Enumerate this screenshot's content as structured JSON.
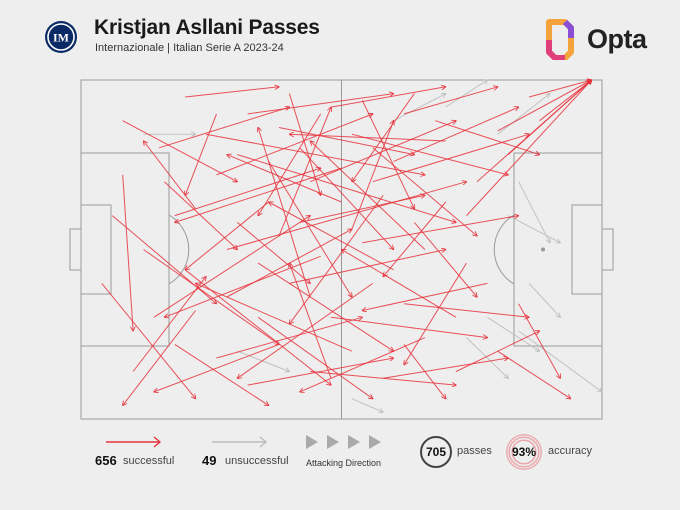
{
  "header": {
    "title": "Kristjan Asllani Passes",
    "subtitle": "Internazionale | Italian Serie A 2023-24",
    "brand": "Opta",
    "brand_colors": [
      "#f4a43a",
      "#e0407a",
      "#8a4fd6"
    ]
  },
  "club_logo": {
    "icon": "inter-crest-icon",
    "color": "#0a2a66"
  },
  "legend": {
    "successful_count": "656",
    "successful_label": "successful",
    "unsuccessful_count": "49",
    "unsuccessful_label": "unsuccessful",
    "direction_label": "Attacking Direction",
    "passes_count": "705",
    "passes_label": "passes",
    "accuracy_value": "93%",
    "accuracy_label": "accuracy",
    "successful_color": "#e8323c",
    "unsuccessful_color": "#bbbbbb"
  },
  "chart_data": {
    "type": "scatter",
    "description_type": "pass-map",
    "x_range": [
      0,
      100
    ],
    "y_range": [
      0,
      100
    ],
    "attacking_direction": "left-to-right",
    "totals": {
      "successful": 656,
      "unsuccessful": 49,
      "passes": 705,
      "accuracy_pct": 93
    },
    "successful_passes": [
      [
        74,
        60,
        98,
        100
      ],
      [
        76,
        70,
        98,
        100
      ],
      [
        82,
        78,
        98,
        100
      ],
      [
        80,
        85,
        98,
        100
      ],
      [
        88,
        88,
        98,
        100
      ],
      [
        86,
        95,
        98,
        100
      ],
      [
        62,
        90,
        80,
        98
      ],
      [
        20,
        95,
        38,
        98
      ],
      [
        32,
        90,
        60,
        96
      ],
      [
        48,
        92,
        70,
        98
      ],
      [
        8,
        88,
        30,
        70
      ],
      [
        15,
        80,
        40,
        92
      ],
      [
        26,
        72,
        56,
        90
      ],
      [
        38,
        86,
        64,
        78
      ],
      [
        44,
        70,
        72,
        88
      ],
      [
        52,
        84,
        82,
        72
      ],
      [
        60,
        76,
        84,
        92
      ],
      [
        68,
        88,
        88,
        78
      ],
      [
        22,
        62,
        12,
        82
      ],
      [
        30,
        58,
        44,
        40
      ],
      [
        36,
        64,
        20,
        44
      ],
      [
        42,
        58,
        66,
        66
      ],
      [
        50,
        64,
        28,
        78
      ],
      [
        54,
        52,
        84,
        60
      ],
      [
        58,
        66,
        40,
        28
      ],
      [
        64,
        58,
        76,
        36
      ],
      [
        70,
        64,
        58,
        42
      ],
      [
        46,
        48,
        16,
        30
      ],
      [
        40,
        40,
        70,
        50
      ],
      [
        34,
        46,
        60,
        20
      ],
      [
        28,
        36,
        52,
        56
      ],
      [
        20,
        44,
        48,
        10
      ],
      [
        14,
        30,
        44,
        60
      ],
      [
        12,
        50,
        38,
        22
      ],
      [
        6,
        60,
        26,
        34
      ],
      [
        48,
        30,
        78,
        24
      ],
      [
        56,
        40,
        30,
        12
      ],
      [
        62,
        34,
        86,
        30
      ],
      [
        66,
        24,
        42,
        8
      ],
      [
        72,
        30,
        50,
        50
      ],
      [
        26,
        18,
        54,
        30
      ],
      [
        32,
        10,
        60,
        18
      ],
      [
        38,
        22,
        14,
        8
      ],
      [
        44,
        14,
        72,
        10
      ],
      [
        52,
        20,
        22,
        40
      ],
      [
        58,
        12,
        82,
        18
      ],
      [
        18,
        22,
        36,
        4
      ],
      [
        10,
        14,
        24,
        42
      ],
      [
        4,
        40,
        22,
        6
      ],
      [
        8,
        72,
        10,
        26
      ],
      [
        36,
        76,
        52,
        36
      ],
      [
        42,
        80,
        60,
        50
      ],
      [
        50,
        74,
        18,
        58
      ],
      [
        56,
        80,
        76,
        54
      ],
      [
        60,
        44,
        36,
        64
      ],
      [
        66,
        50,
        44,
        82
      ],
      [
        24,
        84,
        66,
        72
      ],
      [
        30,
        78,
        72,
        58
      ],
      [
        46,
        90,
        34,
        60
      ],
      [
        54,
        94,
        64,
        62
      ],
      [
        40,
        96,
        46,
        66
      ],
      [
        64,
        96,
        52,
        70
      ],
      [
        70,
        82,
        40,
        84
      ],
      [
        74,
        46,
        62,
        16
      ],
      [
        78,
        40,
        54,
        32
      ],
      [
        80,
        20,
        94,
        6
      ],
      [
        84,
        34,
        92,
        12
      ],
      [
        72,
        14,
        88,
        26
      ],
      [
        34,
        30,
        56,
        6
      ],
      [
        18,
        60,
        46,
        74
      ],
      [
        22,
        32,
        8,
        4
      ],
      [
        62,
        22,
        70,
        6
      ],
      [
        28,
        50,
        74,
        70
      ],
      [
        44,
        36,
        34,
        86
      ],
      [
        52,
        56,
        60,
        88
      ],
      [
        38,
        54,
        48,
        92
      ],
      [
        16,
        70,
        30,
        50
      ],
      [
        26,
        90,
        20,
        66
      ],
      [
        56,
        70,
        86,
        84
      ],
      [
        48,
        12,
        40,
        46
      ]
    ],
    "unsuccessful_passes": [
      [
        70,
        92,
        78,
        100
      ],
      [
        80,
        84,
        90,
        96
      ],
      [
        84,
        70,
        90,
        52
      ],
      [
        82,
        60,
        92,
        52
      ],
      [
        86,
        40,
        92,
        30
      ],
      [
        78,
        30,
        88,
        20
      ],
      [
        74,
        24,
        82,
        12
      ],
      [
        30,
        20,
        40,
        14
      ],
      [
        52,
        6,
        58,
        2
      ],
      [
        60,
        88,
        70,
        96
      ],
      [
        12,
        84,
        22,
        84
      ],
      [
        84,
        26,
        100,
        8
      ]
    ]
  }
}
